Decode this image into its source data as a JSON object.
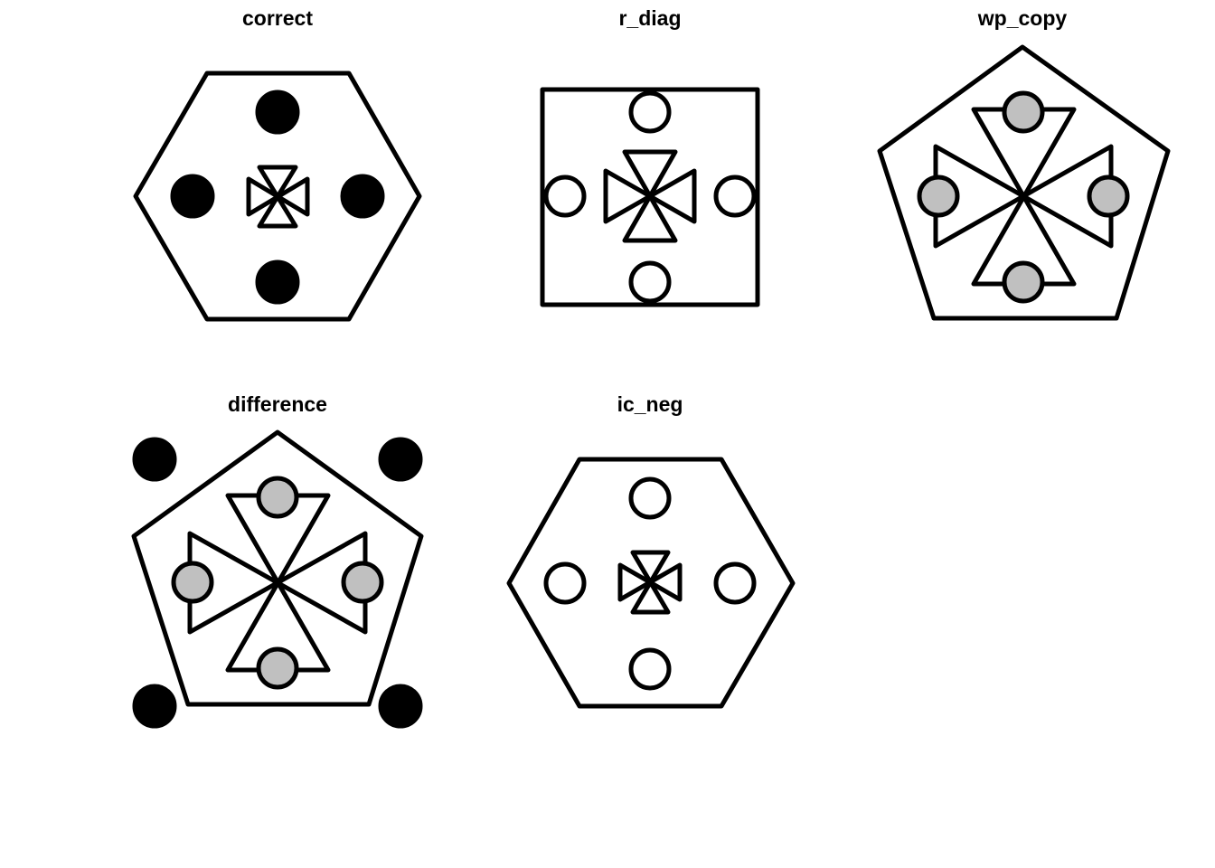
{
  "colors": {
    "stroke": "#000000",
    "black_fill": "#000000",
    "gray_fill": "#c0c0c0",
    "white_fill": "#ffffff"
  },
  "panels": [
    {
      "title": "correct",
      "outer_shape": "hexagon",
      "inner_shape": "bowtie-cross-small",
      "dot_fill": "black"
    },
    {
      "title": "r_diag",
      "outer_shape": "square",
      "inner_shape": "bowtie-cross-medium",
      "dot_fill": "white"
    },
    {
      "title": "wp_copy",
      "outer_shape": "pentagon",
      "inner_shape": "bowtie-cross-large",
      "dot_fill": "gray"
    },
    {
      "title": "difference",
      "outer_shape": "pentagon",
      "inner_shape": "bowtie-cross-large",
      "dot_fill": "gray",
      "corner_dots": "black"
    },
    {
      "title": "ic_neg",
      "outer_shape": "hexagon",
      "inner_shape": "bowtie-cross-small",
      "dot_fill": "white"
    }
  ]
}
